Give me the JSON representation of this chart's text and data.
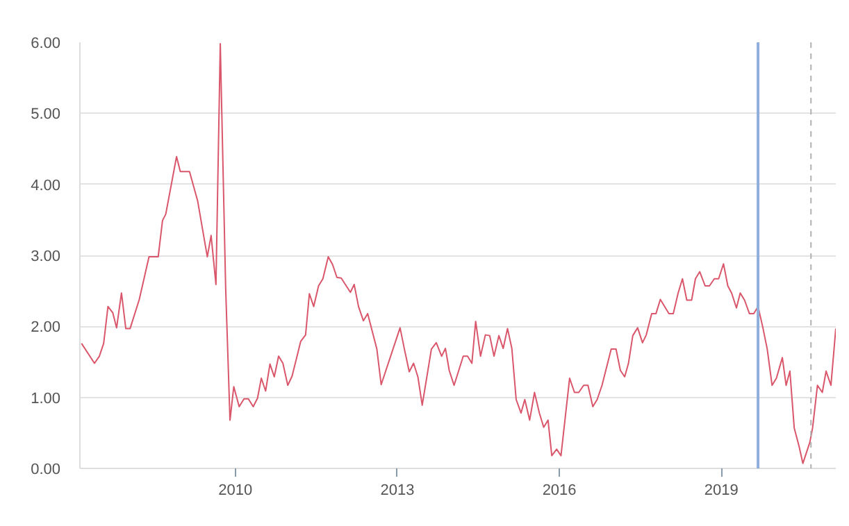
{
  "chart_data": {
    "type": "line",
    "xlim": [
      2007.12,
      2021.12
    ],
    "ylim": [
      0,
      6
    ],
    "xticks": [
      2010,
      2013,
      2016,
      2019
    ],
    "yticks": [
      {
        "value": 0,
        "label": "0.00"
      },
      {
        "value": 1,
        "label": "1.00"
      },
      {
        "value": 2,
        "label": "2.00"
      },
      {
        "value": 3,
        "label": "3.00"
      },
      {
        "value": 4,
        "label": "4.00"
      },
      {
        "value": 5,
        "label": "5.00"
      },
      {
        "value": 6,
        "label": "6.00"
      }
    ],
    "grid": "y",
    "marker": "none",
    "line_style": "solid",
    "series": [
      {
        "color": "#d9566b",
        "x": [
          2007.15,
          2007.39,
          2007.48,
          2007.56,
          2007.64,
          2007.73,
          2007.8,
          2007.89,
          2007.97,
          2008.05,
          2008.22,
          2008.4,
          2008.57,
          2008.65,
          2008.71,
          2008.91,
          2008.98,
          2009.15,
          2009.3,
          2009.48,
          2009.55,
          2009.64,
          2009.72,
          2009.82,
          2009.9,
          2009.97,
          2010.07,
          2010.16,
          2010.24,
          2010.33,
          2010.41,
          2010.48,
          2010.56,
          2010.64,
          2010.72,
          2010.8,
          2010.88,
          2010.97,
          2011.05,
          2011.21,
          2011.3,
          2011.37,
          2011.45,
          2011.54,
          2011.62,
          2011.72,
          2011.8,
          2011.88,
          2011.96,
          2012.13,
          2012.2,
          2012.28,
          2012.37,
          2012.45,
          2012.62,
          2012.7,
          2013.05,
          2013.13,
          2013.22,
          2013.3,
          2013.38,
          2013.46,
          2013.63,
          2013.72,
          2013.82,
          2013.89,
          2013.96,
          2014.05,
          2014.22,
          2014.3,
          2014.38,
          2014.45,
          2014.54,
          2014.63,
          2014.71,
          2014.79,
          2014.88,
          2014.96,
          2015.04,
          2015.12,
          2015.2,
          2015.29,
          2015.36,
          2015.45,
          2015.54,
          2015.63,
          2015.71,
          2015.79,
          2015.86,
          2015.95,
          2016.03,
          2016.19,
          2016.28,
          2016.36,
          2016.45,
          2016.53,
          2016.62,
          2016.7,
          2016.79,
          2016.96,
          2017.05,
          2017.13,
          2017.21,
          2017.28,
          2017.36,
          2017.45,
          2017.54,
          2017.61,
          2017.71,
          2017.79,
          2017.87,
          2018.03,
          2018.11,
          2018.2,
          2018.28,
          2018.36,
          2018.45,
          2018.52,
          2018.6,
          2018.7,
          2018.78,
          2018.87,
          2018.95,
          2019.04,
          2019.12,
          2019.19,
          2019.28,
          2019.35,
          2019.43,
          2019.52,
          2019.6,
          2019.68,
          2019.77,
          2019.85,
          2019.94,
          2020.02,
          2020.13,
          2020.2,
          2020.27,
          2020.35,
          2020.44,
          2020.51,
          2020.64,
          2020.69,
          2020.78,
          2020.87,
          2020.94,
          2021.03,
          2021.12
        ],
        "values": [
          1.76,
          1.48,
          1.58,
          1.76,
          2.28,
          2.19,
          1.98,
          2.47,
          1.97,
          1.97,
          2.38,
          2.98,
          2.98,
          3.49,
          3.58,
          4.39,
          4.18,
          4.18,
          3.77,
          2.98,
          3.28,
          2.59,
          5.98,
          2.53,
          0.68,
          1.15,
          0.87,
          0.98,
          0.98,
          0.87,
          0.99,
          1.27,
          1.09,
          1.47,
          1.29,
          1.58,
          1.48,
          1.17,
          1.3,
          1.79,
          1.88,
          2.46,
          2.28,
          2.57,
          2.67,
          2.98,
          2.87,
          2.69,
          2.68,
          2.48,
          2.59,
          2.28,
          2.08,
          2.18,
          1.68,
          1.18,
          1.98,
          1.68,
          1.36,
          1.48,
          1.29,
          0.89,
          1.68,
          1.77,
          1.58,
          1.69,
          1.38,
          1.17,
          1.58,
          1.58,
          1.48,
          2.07,
          1.58,
          1.88,
          1.87,
          1.58,
          1.87,
          1.69,
          1.97,
          1.69,
          0.97,
          0.78,
          0.97,
          0.68,
          1.07,
          0.78,
          0.58,
          0.68,
          0.18,
          0.27,
          0.18,
          1.27,
          1.07,
          1.07,
          1.17,
          1.17,
          0.87,
          0.97,
          1.17,
          1.68,
          1.68,
          1.38,
          1.29,
          1.48,
          1.87,
          1.98,
          1.77,
          1.88,
          2.18,
          2.18,
          2.38,
          2.18,
          2.18,
          2.47,
          2.67,
          2.37,
          2.37,
          2.67,
          2.77,
          2.57,
          2.57,
          2.67,
          2.67,
          2.88,
          2.57,
          2.47,
          2.26,
          2.47,
          2.37,
          2.18,
          2.18,
          2.28,
          1.98,
          1.68,
          1.17,
          1.27,
          1.56,
          1.17,
          1.37,
          0.57,
          0.31,
          0.07,
          0.37,
          0.57,
          1.17,
          1.07,
          1.37,
          1.17,
          1.97
        ]
      }
    ],
    "ref_lines": [
      {
        "axis": "x",
        "value": 2019.68,
        "color": "#8eaedb",
        "line_style": "solid"
      },
      {
        "axis": "x",
        "value": 2020.66,
        "color": "#b0b0b0",
        "line_style": "dashed"
      }
    ]
  }
}
